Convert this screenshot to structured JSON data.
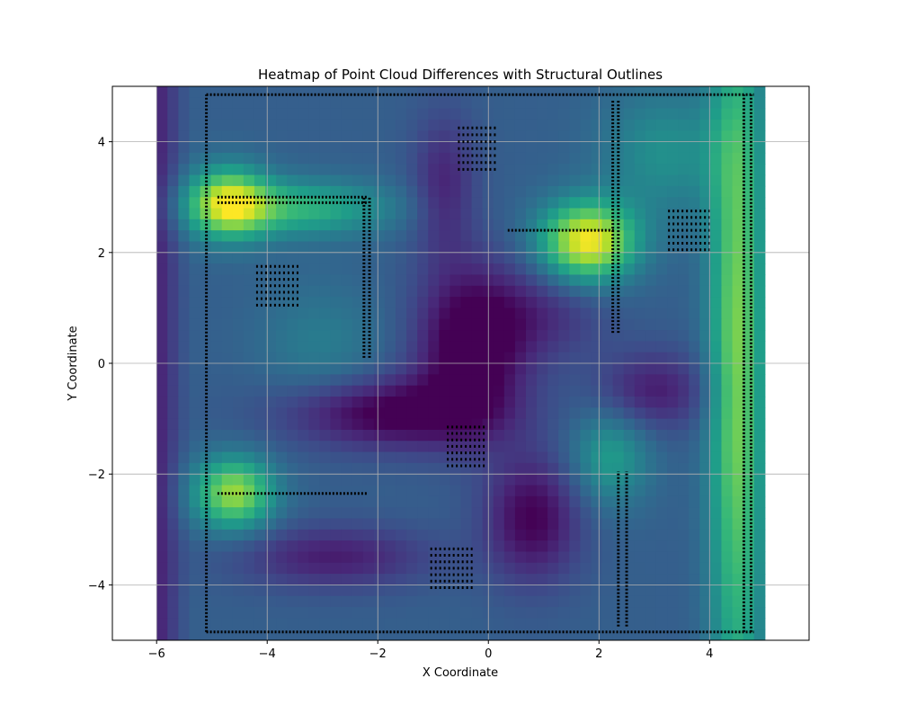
{
  "chart_data": {
    "type": "heatmap",
    "title": "Heatmap of Point Cloud Differences with Structural Outlines",
    "xlabel": "X Coordinate",
    "ylabel": "Y Coordinate",
    "xlim": [
      -6.8,
      5.8
    ],
    "ylim": [
      -5,
      5
    ],
    "data_extent": {
      "x": [
        -6,
        5
      ],
      "y": [
        -5,
        5
      ]
    },
    "xticks": [
      -6,
      -4,
      -2,
      0,
      2,
      4
    ],
    "yticks": [
      -4,
      -2,
      0,
      2,
      4
    ],
    "xtick_labels": [
      "−6",
      "−4",
      "−2",
      "0",
      "2",
      "4"
    ],
    "ytick_labels": [
      "−4",
      "−2",
      "0",
      "2",
      "4"
    ],
    "grid": true,
    "colormap": "viridis",
    "value_range": [
      0,
      1
    ],
    "base_level": 0.3,
    "hotspots": [
      {
        "x": 1.8,
        "y": 2.2,
        "amp": 0.7,
        "sx": 0.6,
        "sy": 0.5
      },
      {
        "x": -4.7,
        "y": 2.9,
        "amp": 0.55,
        "sx": 0.5,
        "sy": 0.45
      },
      {
        "x": -3.5,
        "y": 2.8,
        "amp": 0.35,
        "sx": 1.2,
        "sy": 0.35
      },
      {
        "x": -4.6,
        "y": -2.35,
        "amp": 0.55,
        "sx": 0.5,
        "sy": 0.45
      },
      {
        "x": 4.5,
        "y": 0.0,
        "amp": 0.5,
        "sx": 0.35,
        "sy": 5.0
      },
      {
        "x": 2.2,
        "y": -1.7,
        "amp": 0.25,
        "sx": 0.5,
        "sy": 0.6
      },
      {
        "x": 3.2,
        "y": 3.8,
        "amp": 0.2,
        "sx": 0.8,
        "sy": 0.8
      },
      {
        "x": -3.0,
        "y": 0.3,
        "amp": 0.12,
        "sx": 0.8,
        "sy": 0.8
      }
    ],
    "coldspots": [
      {
        "x": -0.3,
        "y": 0.3,
        "amp": 0.38,
        "sx": 0.7,
        "sy": 1.0
      },
      {
        "x": -1.8,
        "y": -0.9,
        "amp": 0.33,
        "sx": 1.3,
        "sy": 0.45
      },
      {
        "x": 0.8,
        "y": -2.8,
        "amp": 0.3,
        "sx": 0.6,
        "sy": 0.8
      },
      {
        "x": -2.8,
        "y": -3.5,
        "amp": 0.22,
        "sx": 1.2,
        "sy": 0.4
      },
      {
        "x": 3.0,
        "y": -0.5,
        "amp": 0.22,
        "sx": 0.7,
        "sy": 0.5
      },
      {
        "x": -0.8,
        "y": 3.2,
        "amp": 0.2,
        "sx": 0.4,
        "sy": 0.9
      },
      {
        "x": 1.0,
        "y": 0.9,
        "amp": 0.15,
        "sx": 0.8,
        "sy": 0.6
      }
    ],
    "edge_falloff": {
      "x_start": -6.0,
      "x_full": -5.4,
      "amp": 0.22
    },
    "outline_lines": [
      {
        "name": "top-boundary",
        "x": [
          -5.1,
          4.8
        ],
        "y": [
          4.85,
          4.85
        ]
      },
      {
        "name": "bottom-boundary",
        "x": [
          -5.1,
          4.8
        ],
        "y": [
          -4.85,
          -4.85
        ]
      },
      {
        "name": "left-boundary",
        "x": [
          -5.1,
          -5.1
        ],
        "y": [
          -4.85,
          4.85
        ]
      },
      {
        "name": "right-boundary-outer",
        "x": [
          4.62,
          4.62
        ],
        "y": [
          -4.85,
          4.85
        ]
      },
      {
        "name": "right-boundary-inner",
        "x": [
          4.75,
          4.75
        ],
        "y": [
          -4.85,
          4.85
        ]
      },
      {
        "name": "upper-left-wall",
        "x": [
          -4.9,
          -2.2
        ],
        "y": [
          3.0,
          3.0
        ]
      },
      {
        "name": "upper-left-wall-lower",
        "x": [
          -4.9,
          -2.2
        ],
        "y": [
          2.9,
          2.9
        ]
      },
      {
        "name": "upper-left-column",
        "x": [
          -2.25,
          -2.25
        ],
        "y": [
          0.1,
          3.0
        ]
      },
      {
        "name": "upper-left-column-b",
        "x": [
          -2.15,
          -2.15
        ],
        "y": [
          0.1,
          3.0
        ]
      },
      {
        "name": "lower-left-wall",
        "x": [
          -4.9,
          -2.2
        ],
        "y": [
          -2.35,
          -2.35
        ]
      },
      {
        "name": "upper-mid-wall",
        "x": [
          0.35,
          2.3
        ],
        "y": [
          2.4,
          2.4
        ]
      },
      {
        "name": "upper-right-column",
        "x": [
          2.25,
          2.25
        ],
        "y": [
          0.55,
          4.75
        ]
      },
      {
        "name": "upper-right-column-b",
        "x": [
          2.35,
          2.35
        ],
        "y": [
          0.55,
          4.75
        ]
      },
      {
        "name": "lower-right-column",
        "x": [
          2.35,
          2.35
        ],
        "y": [
          -4.75,
          -1.95
        ]
      },
      {
        "name": "lower-right-column-b",
        "x": [
          2.5,
          2.5
        ],
        "y": [
          -4.75,
          -1.95
        ]
      }
    ],
    "outline_blocks": [
      {
        "name": "block-top-center",
        "x": [
          -0.55,
          0.15
        ],
        "y": [
          3.5,
          4.25
        ]
      },
      {
        "name": "block-upper-left",
        "x": [
          -4.2,
          -3.4
        ],
        "y": [
          1.05,
          1.75
        ]
      },
      {
        "name": "block-upper-right",
        "x": [
          3.25,
          4.0
        ],
        "y": [
          2.05,
          2.75
        ]
      },
      {
        "name": "block-lower-center",
        "x": [
          -0.75,
          -0.05
        ],
        "y": [
          -1.85,
          -1.15
        ]
      },
      {
        "name": "block-bottom-center",
        "x": [
          -1.05,
          -0.25
        ],
        "y": [
          -4.05,
          -3.35
        ]
      }
    ]
  }
}
